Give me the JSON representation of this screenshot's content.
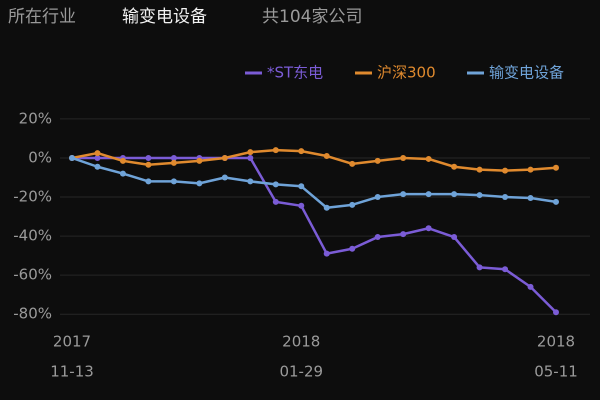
{
  "header": {
    "industry_label": "所在行业",
    "industry": "输变电设备",
    "count_text": "共104家公司"
  },
  "chart_data": {
    "type": "line",
    "categories": [
      "11-13",
      null,
      null,
      null,
      null,
      null,
      null,
      null,
      null,
      "01-29",
      null,
      null,
      null,
      null,
      null,
      null,
      null,
      null,
      null,
      "05-11"
    ],
    "category_years": [
      "2017",
      null,
      null,
      null,
      null,
      null,
      null,
      null,
      null,
      "2018",
      null,
      null,
      null,
      null,
      null,
      null,
      null,
      null,
      null,
      "2018"
    ],
    "series": [
      {
        "name": "*ST东电",
        "color": "#7b5cd6",
        "values": [
          0,
          0,
          0,
          0,
          0,
          0,
          0,
          0,
          -22.5,
          -24.5,
          -49,
          -46.5,
          -40.5,
          -39,
          -36,
          -40.5,
          -56,
          -57,
          -66,
          -79
        ]
      },
      {
        "name": "沪深300",
        "color": "#e08a2e",
        "values": [
          0,
          2.5,
          -1.5,
          -3.5,
          -2.5,
          -1.5,
          0,
          3,
          4,
          3.5,
          1,
          -3,
          -1.5,
          0,
          -0.5,
          -4.5,
          -6,
          -6.5,
          -6,
          -5
        ]
      },
      {
        "name": "输变电设备",
        "color": "#6fa3d8",
        "values": [
          0,
          -4.5,
          -8,
          -12,
          -12,
          -13,
          -10,
          -12,
          -13.5,
          -14.5,
          -25.5,
          -24,
          -20,
          -18.5,
          -18.5,
          -18.5,
          -19,
          -20,
          -20.5,
          -22.5
        ]
      }
    ],
    "ylim": [
      -84,
      22
    ],
    "yticks": [
      {
        "value": 20,
        "label": "20%"
      },
      {
        "value": 0,
        "label": "0%"
      },
      {
        "value": -20,
        "label": "-20%"
      },
      {
        "value": -40,
        "label": "-40%"
      },
      {
        "value": -60,
        "label": "-60%"
      },
      {
        "value": -80,
        "label": "-80%"
      }
    ],
    "grid": true
  }
}
